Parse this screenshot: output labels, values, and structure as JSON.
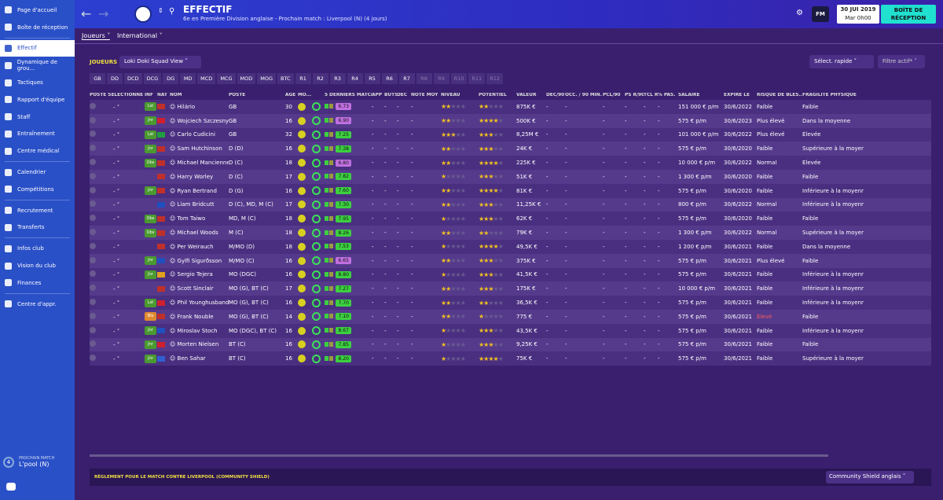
{
  "sidebar": {
    "items": [
      {
        "label": "Page d'accueil"
      },
      {
        "label": "Boîte de réception"
      },
      {
        "label": "Effectif"
      },
      {
        "label": "Dynamique de grou..."
      },
      {
        "label": "Tactiques"
      },
      {
        "label": "Rapport d'équipe"
      },
      {
        "label": "Staff"
      },
      {
        "label": "Entraînement"
      },
      {
        "label": "Centre médical"
      },
      {
        "label": "Calendrier"
      },
      {
        "label": "Compétitions"
      },
      {
        "label": "Recrutement"
      },
      {
        "label": "Transferts"
      },
      {
        "label": "Infos club"
      },
      {
        "label": "Vision du club"
      },
      {
        "label": "Finances"
      },
      {
        "label": "Centre d'appr."
      }
    ],
    "next_match_label": "PROCHAIN MATCH",
    "next_match_team": "L'pool (N)",
    "next_match_days": "4"
  },
  "header": {
    "title": "EFFECTIF",
    "subtitle": "6e en Première Division anglaise - Prochain match : Liverpool (N) (4 jours)",
    "date": "30 JUI 2019",
    "time": "Mar 0h00",
    "inbox_label": "BOÎTE DE RÉCEPTION",
    "fm": "FM"
  },
  "subtabs": {
    "players": "Joueurs",
    "international": "International"
  },
  "filters": {
    "section_label": "JOUEURS",
    "squad_view": "Loki Doki Squad View",
    "quick_select": "Sélect. rapide",
    "active_filter": "Filtre actif*"
  },
  "positions": [
    "GB",
    "DD",
    "DCD",
    "DCG",
    "DG",
    "MD",
    "MCD",
    "MCG",
    "MOD",
    "MOG",
    "BTC",
    "R1",
    "R2",
    "R3",
    "R4",
    "R5",
    "R6",
    "R7",
    "R8",
    "R9",
    "R10",
    "R11",
    "R12"
  ],
  "columns": [
    "POSTE SÉLECTIONNÉ",
    "INF",
    "NAT",
    "NOM",
    "POSTE",
    "ÂGE",
    "MO...",
    "",
    "5 DERNIERS MATCHS",
    "APP",
    "BUTS",
    "DÉC",
    "NOTE MOY",
    "NIVEAU",
    "POTENTIEL",
    "VALEUR",
    "DÉC/90",
    "OCC. / 90 MIN.",
    "PCL/90",
    "PS R/90",
    "TCL R",
    "% PAS.",
    "SALAIRE",
    "EXPIRE LE",
    "RISQUE DE BLES...",
    "FRAGILITÉ PHYSIQUE"
  ],
  "players": [
    {
      "sel": "-",
      "inf": "Lst",
      "infc": "#4a9a30",
      "flag": "#c0302a",
      "name": "Hilário",
      "pos": "GB",
      "age": "30",
      "form": "6.73",
      "fc": "#c070e0",
      "niv": 2,
      "pot": 2,
      "val": "875K €",
      "sal": "151 000 € p/m",
      "exp": "30/6/2022",
      "risk": "Faible",
      "frag": "Faible"
    },
    {
      "sel": "-",
      "inf": "Jnr",
      "infc": "#4a9a30",
      "flag": "#d02030",
      "name": "Wojciech Szczesny",
      "pos": "GB",
      "age": "16",
      "form": "6.90",
      "fc": "#c070e0",
      "niv": 2,
      "pot": 4,
      "val": "500K €",
      "sal": "575 € p/m",
      "exp": "30/6/2023",
      "risk": "Plus élevé",
      "frag": "Dans la moyenne"
    },
    {
      "sel": "-",
      "inf": "Lst",
      "infc": "#4a9a30",
      "flag": "#20a040",
      "name": "Carlo Cudicini",
      "pos": "GB",
      "age": "32",
      "form": "7.25",
      "fc": "#3cd040",
      "niv": 3,
      "pot": 3,
      "val": "8,25M €",
      "sal": "101 000 € p/m",
      "exp": "30/6/2022",
      "risk": "Plus élevé",
      "frag": "Élevée"
    },
    {
      "sel": "-",
      "inf": "Jnr",
      "infc": "#4a9a30",
      "flag": "#c0302a",
      "name": "Sam Hutchinson",
      "pos": "D (D)",
      "age": "16",
      "form": "7.38",
      "fc": "#3cd040",
      "niv": 2,
      "pot": 3,
      "val": "24K €",
      "sal": "575 € p/m",
      "exp": "30/6/2020",
      "risk": "Faible",
      "frag": "Supérieure à la moyenne"
    },
    {
      "sel": "-",
      "inf": "Obs",
      "infc": "#4a9a30",
      "flag": "#c0302a",
      "name": "Michael Mancienne",
      "pos": "D (C)",
      "age": "18",
      "form": "6.80",
      "fc": "#c070e0",
      "niv": 2,
      "pot": 4,
      "val": "225K €",
      "sal": "10 000 € p/m",
      "exp": "30/6/2022",
      "risk": "Normal",
      "frag": "Élevée"
    },
    {
      "sel": "-",
      "inf": "",
      "infc": "",
      "flag": "#c0302a",
      "name": "Harry Worley",
      "pos": "D (C)",
      "age": "17",
      "form": "7.82",
      "fc": "#3cd040",
      "niv": 1,
      "pot": 3,
      "val": "51K €",
      "sal": "1 300 € p/m",
      "exp": "30/6/2020",
      "risk": "Faible",
      "frag": "Faible"
    },
    {
      "sel": "-",
      "inf": "Jnr",
      "infc": "#4a9a30",
      "flag": "#c0302a",
      "name": "Ryan Bertrand",
      "pos": "D (G)",
      "age": "16",
      "form": "7.60",
      "fc": "#3cd040",
      "niv": 2,
      "pot": 4,
      "val": "81K €",
      "sal": "575 € p/m",
      "exp": "30/6/2020",
      "risk": "Faible",
      "frag": "Inférieure à la moyenne"
    },
    {
      "sel": "-",
      "inf": "",
      "infc": "",
      "flag": "#2050c0",
      "name": "Liam Bridcutt",
      "pos": "D (C), MD, M (C)",
      "age": "17",
      "form": "7.30",
      "fc": "#3cd040",
      "niv": 2,
      "pot": 3,
      "val": "11,25K €",
      "sal": "800 € p/m",
      "exp": "30/6/2022",
      "risk": "Normal",
      "frag": "Inférieure à la moyenne"
    },
    {
      "sel": "-",
      "inf": "Obs",
      "infc": "#4a9a30",
      "flag": "#c0302a",
      "name": "Tom Taiwo",
      "pos": "MD, M (C)",
      "age": "18",
      "form": "7.95",
      "fc": "#3cd040",
      "niv": 1,
      "pot": 3,
      "val": "62K €",
      "sal": "575 € p/m",
      "exp": "30/6/2020",
      "risk": "Faible",
      "frag": "Faible"
    },
    {
      "sel": "-",
      "inf": "Obs",
      "infc": "#4a9a30",
      "flag": "#c0302a",
      "name": "Michael Woods",
      "pos": "M (C)",
      "age": "18",
      "form": "8.26",
      "fc": "#3cd040",
      "niv": 2,
      "pot": 2,
      "val": "79K €",
      "sal": "1 300 € p/m",
      "exp": "30/6/2022",
      "risk": "Normal",
      "frag": "Supérieure à la moyenne"
    },
    {
      "sel": "-",
      "inf": "",
      "infc": "",
      "flag": "#c0302a",
      "name": "Per Weirauch",
      "pos": "M/MO (D)",
      "age": "18",
      "form": "7.53",
      "fc": "#3cd040",
      "niv": 1,
      "pot": 4,
      "val": "49,5K €",
      "sal": "1 200 € p/m",
      "exp": "30/6/2021",
      "risk": "Faible",
      "frag": "Dans la moyenne"
    },
    {
      "sel": "-",
      "inf": "Jnr",
      "infc": "#4a9a30",
      "flag": "#2050c0",
      "name": "Gylfi Sigurðsson",
      "pos": "M/MO (C)",
      "age": "16",
      "form": "6.65",
      "fc": "#c070e0",
      "niv": 2,
      "pot": 3,
      "val": "375K €",
      "sal": "575 € p/m",
      "exp": "30/6/2021",
      "risk": "Plus élevé",
      "frag": "Faible"
    },
    {
      "sel": "-",
      "inf": "Jnr",
      "infc": "#4a9a30",
      "flag": "#e0a020",
      "name": "Sergio Tejera",
      "pos": "MO (DGC)",
      "age": "16",
      "form": "8.80",
      "fc": "#3cd040",
      "niv": 1,
      "pot": 3,
      "val": "41,5K €",
      "sal": "575 € p/m",
      "exp": "30/6/2021",
      "risk": "Faible",
      "frag": "Inférieure à la moyenne"
    },
    {
      "sel": "-",
      "inf": "",
      "infc": "",
      "flag": "#c0302a",
      "name": "Scott Sinclair",
      "pos": "MO (G), BT (C)",
      "age": "17",
      "form": "7.27",
      "fc": "#3cd040",
      "niv": 2,
      "pot": 3,
      "val": "175K €",
      "sal": "10 000 € p/m",
      "exp": "30/6/2021",
      "risk": "Faible",
      "frag": "Inférieure à la moyenne"
    },
    {
      "sel": "-",
      "inf": "Lst",
      "infc": "#4a9a30",
      "flag": "#d02030",
      "name": "Phil Younghusband",
      "pos": "MO (G), BT (C)",
      "age": "16",
      "form": "7.70",
      "fc": "#3cd040",
      "niv": 2,
      "pot": 2,
      "val": "36,5K €",
      "sal": "575 € p/m",
      "exp": "30/6/2021",
      "risk": "Faible",
      "frag": "Inférieure à la moyenne"
    },
    {
      "sel": "-",
      "inf": "Bls",
      "infc": "#e08a30",
      "flag": "#c0302a",
      "name": "Frank Nouble",
      "pos": "MO (G), BT (C)",
      "age": "14",
      "form": "7.10",
      "fc": "#3cd040",
      "niv": 2,
      "pot": 1,
      "val": "775 €",
      "sal": "575 € p/m",
      "exp": "30/6/2021",
      "risk": "Élevé",
      "frag": "Faible",
      "riskHigh": true
    },
    {
      "sel": "-",
      "inf": "Jnr",
      "infc": "#4a9a30",
      "flag": "#2050c0",
      "name": "Miroslav Stoch",
      "pos": "MO (DGC), BT (C)",
      "age": "16",
      "form": "8.67",
      "fc": "#3cd040",
      "niv": 1,
      "pot": 3,
      "val": "43,5K €",
      "sal": "575 € p/m",
      "exp": "30/6/2021",
      "risk": "Faible",
      "frag": "Inférieure à la moyenne"
    },
    {
      "sel": "-",
      "inf": "Jnr",
      "infc": "#4a9a30",
      "flag": "#d02030",
      "name": "Morten Nielsen",
      "pos": "BT (C)",
      "age": "16",
      "form": "7.85",
      "fc": "#3cd040",
      "niv": 1,
      "pot": 3,
      "val": "9,25K €",
      "sal": "575 € p/m",
      "exp": "30/6/2021",
      "risk": "Faible",
      "frag": "Faible"
    },
    {
      "sel": "-",
      "inf": "Jnr",
      "infc": "#4a9a30",
      "flag": "#3060d0",
      "name": "Ben Sahar",
      "pos": "BT (C)",
      "age": "16",
      "form": "8.20",
      "fc": "#3cd040",
      "niv": 1,
      "pot": 4,
      "val": "75K €",
      "sal": "575 € p/m",
      "exp": "30/6/2021",
      "risk": "Faible",
      "frag": "Supérieure à la moyenne"
    }
  ],
  "bottom": {
    "message": "RÈGLEMENT POUR LE MATCH CONTRE LIVERPOOL (COMMUNITY SHIELD)",
    "competition": "Community Shield anglais"
  },
  "colors": {
    "accent": "#2a50c8",
    "inbox": "#20e0d0",
    "bg": "#3a1f6e"
  }
}
